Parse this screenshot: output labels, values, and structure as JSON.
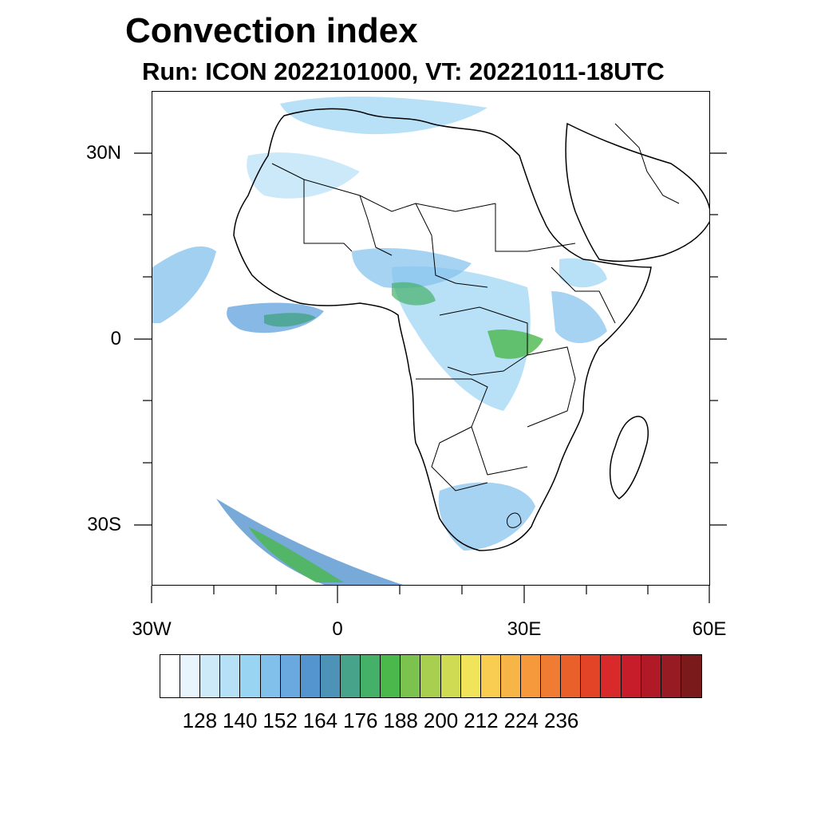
{
  "title": "Convection index",
  "subtitle": "Run: ICON 2022101000,  VT: 20221011-18UTC",
  "axes": {
    "y_labels": [
      "30N",
      "0",
      "30S"
    ],
    "x_labels": [
      "30W",
      "0",
      "30E",
      "60E"
    ]
  },
  "legend": {
    "colors": [
      "#ffffff",
      "#e8f5fc",
      "#cdeaf8",
      "#b5e0f6",
      "#9ad4f3",
      "#82c0ec",
      "#6aa8e0",
      "#5595cf",
      "#4d93b7",
      "#48a38b",
      "#45b068",
      "#4ab84a",
      "#7bc24f",
      "#a8cf4f",
      "#cfdb53",
      "#f0e55a",
      "#f8cd52",
      "#f7b548",
      "#f5993c",
      "#f07c33",
      "#ea602b",
      "#e34428",
      "#d82a2a",
      "#c71d2a",
      "#b01a27",
      "#961b23",
      "#7a1a1a"
    ],
    "labels": [
      "128",
      "140",
      "152",
      "164",
      "176",
      "188",
      "200",
      "212",
      "224",
      "236"
    ]
  }
}
